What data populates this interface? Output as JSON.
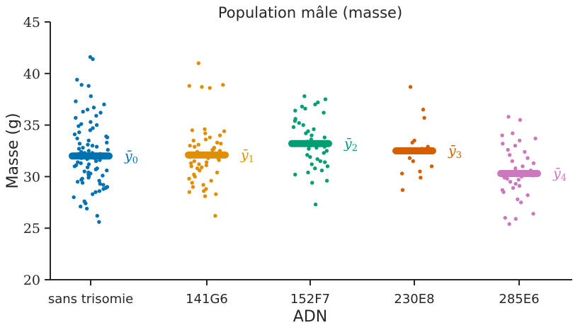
{
  "chart_data": {
    "type": "scatter",
    "title": "Population mâle (masse)",
    "xlabel": "ADN",
    "ylabel": "Masse (g)",
    "ylim": [
      20,
      45
    ],
    "yticks": [
      20,
      25,
      30,
      35,
      40,
      45
    ],
    "grid": false,
    "categories": [
      "sans trisomie",
      "141G6",
      "152F7",
      "230E8",
      "285E6"
    ],
    "series": [
      {
        "category": "sans trisomie",
        "color": "#0072b2",
        "mean": 32.0,
        "mean_label": "ȳ",
        "mean_label_sub": "0",
        "values": [
          41.6,
          41.4,
          39.4,
          38.9,
          38.8,
          37.8,
          37.3,
          37.0,
          36.7,
          36.5,
          36.3,
          36.2,
          35.9,
          35.7,
          35.3,
          35.1,
          35.0,
          34.9,
          34.7,
          34.5,
          34.3,
          34.1,
          33.9,
          33.8,
          33.7,
          33.5,
          33.3,
          33.2,
          33.1,
          33.0,
          32.9,
          32.8,
          32.7,
          32.6,
          32.5,
          32.4,
          32.3,
          32.3,
          32.2,
          32.2,
          32.1,
          32.1,
          32.0,
          32.0,
          32.0,
          31.9,
          31.9,
          31.8,
          31.8,
          31.7,
          31.6,
          31.5,
          31.4,
          31.3,
          31.2,
          31.1,
          31.0,
          30.9,
          30.8,
          30.7,
          30.6,
          30.5,
          30.4,
          30.3,
          30.2,
          30.1,
          30.0,
          29.9,
          29.8,
          29.7,
          29.6,
          29.5,
          29.4,
          29.3,
          29.2,
          29.0,
          28.9,
          28.8,
          28.6,
          28.5,
          28.3,
          28.0,
          27.6,
          27.4,
          27.1,
          26.9,
          26.2,
          25.6
        ]
      },
      {
        "category": "141G6",
        "color": "#de8f05",
        "mean": 32.1,
        "mean_label": "ȳ",
        "mean_label_sub": "1",
        "values": [
          41.0,
          38.9,
          38.8,
          38.7,
          38.6,
          34.6,
          34.5,
          34.4,
          34.2,
          34.0,
          33.8,
          33.6,
          33.5,
          33.3,
          33.2,
          33.1,
          33.0,
          32.9,
          32.8,
          32.7,
          32.6,
          32.5,
          32.4,
          32.3,
          32.2,
          32.1,
          32.0,
          31.9,
          31.8,
          31.7,
          31.6,
          31.5,
          31.4,
          31.3,
          31.2,
          31.1,
          31.0,
          30.9,
          30.8,
          30.6,
          30.4,
          30.2,
          30.0,
          29.8,
          29.6,
          29.4,
          29.2,
          29.0,
          28.8,
          28.6,
          28.5,
          28.3,
          28.1,
          26.2
        ]
      },
      {
        "category": "152F7",
        "color": "#029e73",
        "mean": 33.2,
        "mean_label": "ȳ",
        "mean_label_sub": "2",
        "values": [
          37.8,
          37.5,
          37.2,
          37.0,
          36.8,
          36.6,
          36.4,
          36.2,
          35.6,
          35.4,
          35.2,
          35.0,
          34.8,
          34.6,
          34.4,
          34.2,
          34.0,
          33.8,
          33.6,
          33.4,
          33.3,
          33.2,
          33.1,
          33.0,
          32.9,
          32.8,
          32.7,
          32.5,
          32.3,
          32.1,
          31.9,
          31.7,
          31.5,
          31.4,
          31.2,
          31.0,
          30.8,
          30.6,
          30.4,
          30.2,
          29.6,
          29.4,
          27.3
        ]
      },
      {
        "category": "230E8",
        "color": "#d55e00",
        "mean": 32.5,
        "mean_label": "ȳ",
        "mean_label_sub": "3",
        "values": [
          38.7,
          36.5,
          35.7,
          33.5,
          33.3,
          32.9,
          32.7,
          32.4,
          31.8,
          31.5,
          31.0,
          30.5,
          30.3,
          29.9,
          28.7
        ]
      },
      {
        "category": "285E6",
        "color": "#cc78bc",
        "mean": 30.3,
        "mean_label": "ȳ",
        "mean_label_sub": "4",
        "values": [
          35.8,
          35.5,
          34.2,
          34.0,
          33.7,
          33.5,
          33.2,
          33.0,
          32.6,
          32.4,
          32.1,
          31.8,
          31.5,
          31.3,
          31.0,
          30.8,
          30.6,
          30.4,
          30.3,
          30.2,
          30.1,
          30.0,
          29.9,
          29.8,
          29.7,
          29.5,
          29.3,
          29.1,
          28.9,
          28.7,
          28.5,
          28.2,
          27.8,
          27.5,
          26.4,
          26.0,
          25.9,
          25.4
        ]
      }
    ]
  }
}
